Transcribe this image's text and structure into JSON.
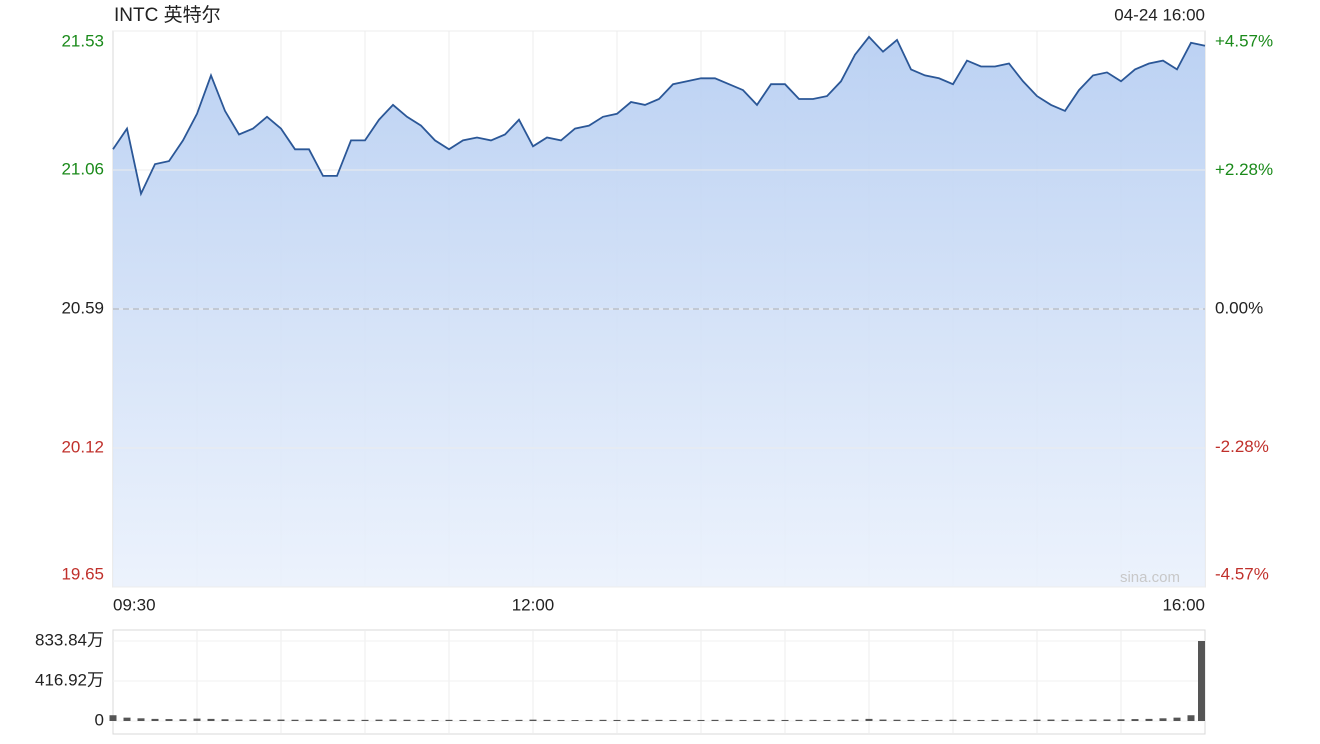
{
  "chart_data": [
    {
      "type": "line",
      "title": "INTC 英特尔",
      "timestamp": "04-24 16:00",
      "watermark": "sina.com",
      "color": "#2b5797",
      "x": [
        "09:30",
        "09:35",
        "09:40",
        "09:45",
        "09:50",
        "09:55",
        "10:00",
        "10:05",
        "10:10",
        "10:15",
        "10:20",
        "10:25",
        "10:30",
        "10:35",
        "10:40",
        "10:45",
        "10:50",
        "10:55",
        "11:00",
        "11:05",
        "11:10",
        "11:15",
        "11:20",
        "11:25",
        "11:30",
        "11:35",
        "11:40",
        "11:45",
        "11:50",
        "11:55",
        "12:00",
        "12:05",
        "12:10",
        "12:15",
        "12:20",
        "12:25",
        "12:30",
        "12:35",
        "12:40",
        "12:45",
        "12:50",
        "12:55",
        "13:00",
        "13:05",
        "13:10",
        "13:15",
        "13:20",
        "13:25",
        "13:30",
        "13:35",
        "13:40",
        "13:45",
        "13:50",
        "13:55",
        "14:00",
        "14:05",
        "14:10",
        "14:15",
        "14:20",
        "14:25",
        "14:30",
        "14:35",
        "14:40",
        "14:45",
        "14:50",
        "14:55",
        "15:00",
        "15:05",
        "15:10",
        "15:15",
        "15:20",
        "15:25",
        "15:30",
        "15:35",
        "15:40",
        "15:45",
        "15:50",
        "15:55",
        "16:00"
      ],
      "values": [
        21.13,
        21.2,
        20.98,
        21.08,
        21.09,
        21.16,
        21.25,
        21.38,
        21.26,
        21.18,
        21.2,
        21.24,
        21.2,
        21.13,
        21.13,
        21.04,
        21.04,
        21.16,
        21.16,
        21.23,
        21.28,
        21.24,
        21.21,
        21.16,
        21.13,
        21.16,
        21.17,
        21.16,
        21.18,
        21.23,
        21.14,
        21.17,
        21.16,
        21.2,
        21.21,
        21.24,
        21.25,
        21.29,
        21.28,
        21.3,
        21.35,
        21.36,
        21.37,
        21.37,
        21.35,
        21.33,
        21.28,
        21.35,
        21.35,
        21.3,
        21.3,
        21.31,
        21.36,
        21.45,
        21.51,
        21.46,
        21.5,
        21.4,
        21.38,
        21.37,
        21.35,
        21.43,
        21.41,
        21.41,
        21.42,
        21.36,
        21.31,
        21.28,
        21.26,
        21.33,
        21.38,
        21.39,
        21.36,
        21.4,
        21.42,
        21.43,
        21.4,
        21.49,
        21.48
      ],
      "ylim": [
        19.65,
        21.53
      ],
      "yticks": [
        19.65,
        20.12,
        20.59,
        21.06,
        21.53
      ],
      "y2lim": [
        -4.57,
        4.57
      ],
      "y2ticks": [
        {
          "value": -4.57,
          "label": "-4.57%"
        },
        {
          "value": -2.28,
          "label": "-2.28%"
        },
        {
          "value": 0,
          "label": "0.00%"
        },
        {
          "value": 2.28,
          "label": "+2.28%"
        },
        {
          "value": 4.57,
          "label": "+4.57%"
        }
      ],
      "xticks": [
        "09:30",
        "12:00",
        "16:00"
      ]
    },
    {
      "type": "bar",
      "color": "#555555",
      "values": [
        60,
        35,
        28,
        22,
        20,
        18,
        25,
        22,
        18,
        15,
        14,
        16,
        15,
        13,
        14,
        16,
        15,
        13,
        12,
        14,
        15,
        13,
        12,
        11,
        12,
        11,
        12,
        10,
        11,
        12,
        14,
        12,
        11,
        10,
        11,
        12,
        11,
        12,
        13,
        12,
        11,
        12,
        11,
        12,
        13,
        11,
        12,
        13,
        11,
        12,
        12,
        11,
        13,
        14,
        22,
        15,
        13,
        12,
        11,
        12,
        13,
        12,
        11,
        12,
        13,
        12,
        14,
        15,
        13,
        14,
        15,
        16,
        18,
        20,
        22,
        28,
        35,
        60,
        833.84
      ],
      "ylim": [
        0,
        833.84
      ],
      "yticks": [
        0,
        {
          "value": 416.92,
          "label": "416.92万"
        },
        {
          "value": 833.84,
          "label": "833.84万"
        }
      ]
    }
  ]
}
